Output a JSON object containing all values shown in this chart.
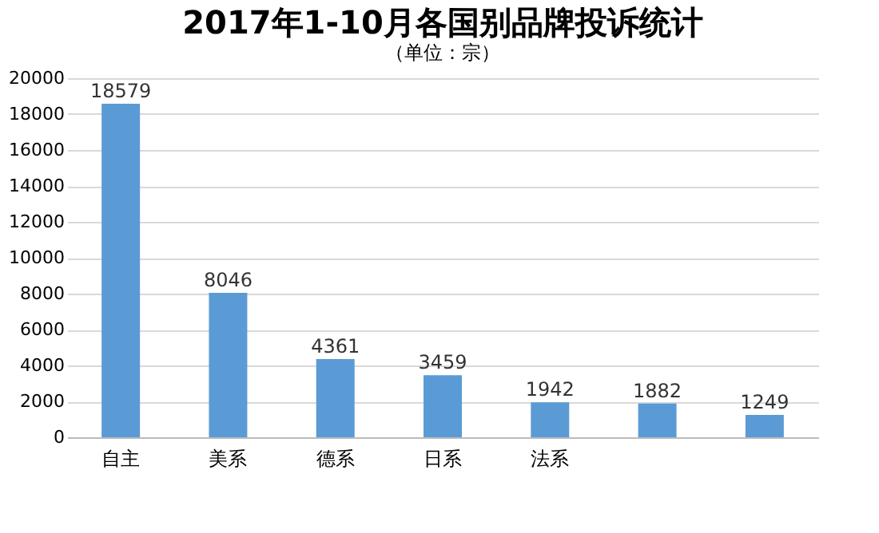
{
  "chart_data": {
    "type": "bar",
    "title": "2017年1-10月各国别品牌投诉统计",
    "subtitle": "（单位：宗）",
    "categories": [
      "自主",
      "美系",
      "德系",
      "日系",
      "法系",
      null,
      null
    ],
    "values": [
      18579,
      8046,
      4361,
      3459,
      1942,
      1882,
      1249
    ],
    "color": "#5b9bd5",
    "ylim": [
      0,
      20000
    ],
    "yticks": [
      0,
      2000,
      4000,
      6000,
      8000,
      10000,
      12000,
      14000,
      16000,
      18000,
      20000
    ],
    "grid": "y",
    "data_labels": true
  }
}
